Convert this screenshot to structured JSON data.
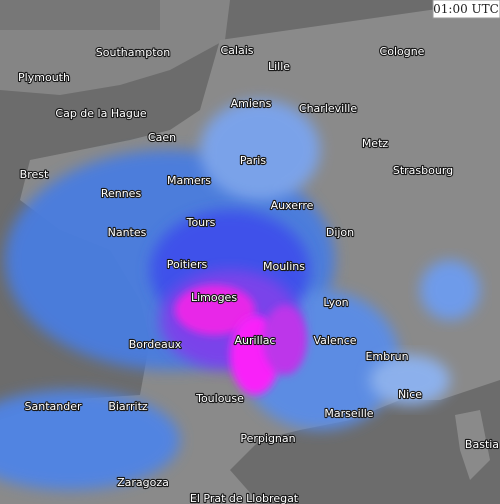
{
  "timestamp": "01:00 UTC",
  "cities": [
    "Southampton",
    "Calais",
    "Lille",
    "Cologne",
    "Plymouth",
    "Amiens",
    "Charleville",
    "Cap de la Hague",
    "Caen",
    "Metz",
    "Brest",
    "Paris",
    "Strasbourg",
    "Mamers",
    "Rennes",
    "Auxerre",
    "Tours",
    "Nantes",
    "Dijon",
    "Poitiers",
    "Moulins",
    "Limoges",
    "Lyon",
    "Aurillac",
    "Valence",
    "Bordeaux",
    "Embrun",
    "Toulouse",
    "Nice",
    "Santander",
    "Biarritz",
    "Marseille",
    "Bastia",
    "Perpignan",
    "Zaragoza",
    "El Prat de Llobregat"
  ]
}
